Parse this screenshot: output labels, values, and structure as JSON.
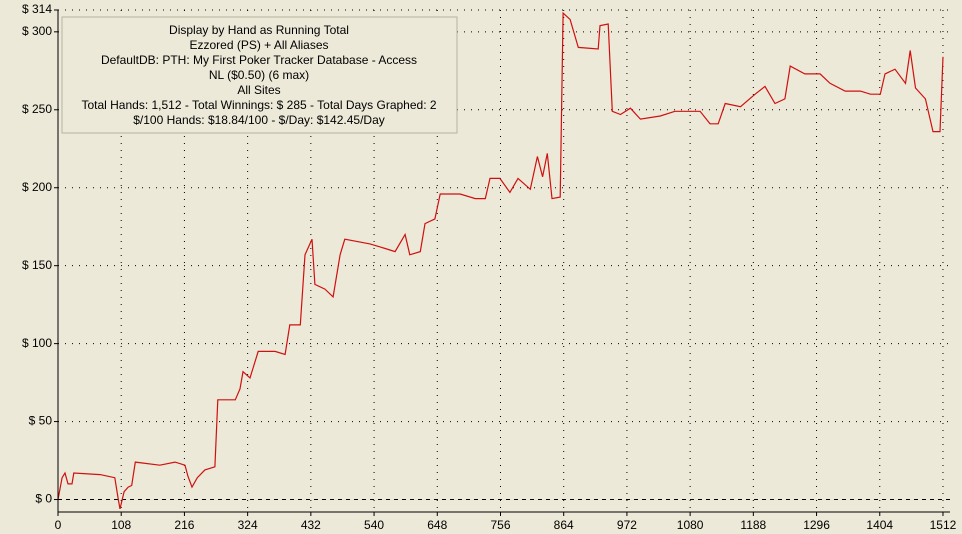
{
  "chart_data": {
    "type": "line",
    "info": [
      "Display by Hand as Running Total",
      "Ezzored (PS) + All Aliases",
      "DefaultDB: PTH: My First Poker Tracker Database - Access",
      "NL ($0.50) (6 max)",
      "All Sites",
      "Total Hands: 1,512 - Total Winnings: $ 285 - Total Days Graphed: 2",
      "$/100 Hands: $18.84/100 - $/Day: $142.45/Day"
    ],
    "x": [
      0,
      7,
      12,
      17,
      24,
      27,
      72,
      97,
      103,
      106,
      113,
      120,
      126,
      132,
      174,
      200,
      217,
      222,
      229,
      238,
      251,
      268,
      273,
      303,
      311,
      316,
      328,
      342,
      371,
      388,
      396,
      414,
      422,
      434,
      439,
      456,
      470,
      482,
      490,
      533,
      559,
      576,
      593,
      601,
      619,
      627,
      644,
      653,
      687,
      713,
      730,
      738,
      755,
      772,
      786,
      807,
      819,
      828,
      836,
      844,
      858,
      863,
      875,
      889,
      923,
      926,
      940,
      947,
      961,
      978,
      995,
      1029,
      1054,
      1080,
      1097,
      1114,
      1128,
      1140,
      1166,
      1191,
      1208,
      1225,
      1242,
      1251,
      1276,
      1302,
      1319,
      1345,
      1371,
      1388,
      1405,
      1413,
      1430,
      1448,
      1456,
      1465,
      1482,
      1495,
      1507,
      1512
    ],
    "series": [
      {
        "name": "Running Total",
        "color": "#d01010",
        "values": [
          0,
          14,
          17,
          10,
          10,
          17,
          16,
          14,
          0,
          -6,
          5,
          8,
          9,
          24,
          22,
          24,
          22,
          15,
          8,
          14,
          19,
          21,
          64,
          64,
          71,
          82,
          78,
          95,
          95,
          93,
          112,
          112,
          157,
          167,
          138,
          135,
          130,
          157,
          167,
          164,
          161,
          159,
          170,
          157,
          159,
          177,
          180,
          196,
          196,
          193,
          193,
          206,
          206,
          197,
          206,
          199,
          220,
          207,
          222,
          193,
          194,
          312,
          308,
          290,
          289,
          304,
          305,
          249,
          247,
          251,
          244,
          246,
          249,
          249,
          249,
          241,
          241,
          254,
          252,
          260,
          265,
          254,
          257,
          278,
          273,
          273,
          267,
          262,
          262,
          260,
          260,
          273,
          276,
          267,
          288,
          264,
          257,
          236,
          236,
          284
        ]
      }
    ],
    "xlim": [
      0,
      1524
    ],
    "ylim": [
      -8,
      314
    ],
    "xticks": [
      0,
      108,
      216,
      324,
      432,
      540,
      648,
      756,
      864,
      972,
      1080,
      1188,
      1296,
      1404,
      1512
    ],
    "yticks": [
      {
        "value": 0,
        "label": "$ 0"
      },
      {
        "value": 50,
        "label": "$ 50"
      },
      {
        "value": 100,
        "label": "$ 100"
      },
      {
        "value": 150,
        "label": "$ 150"
      },
      {
        "value": 200,
        "label": "$ 200"
      },
      {
        "value": 250,
        "label": "$ 250"
      },
      {
        "value": 300,
        "label": "$ 300"
      },
      {
        "value": 314,
        "label": "$ 314"
      }
    ],
    "grid": true
  }
}
